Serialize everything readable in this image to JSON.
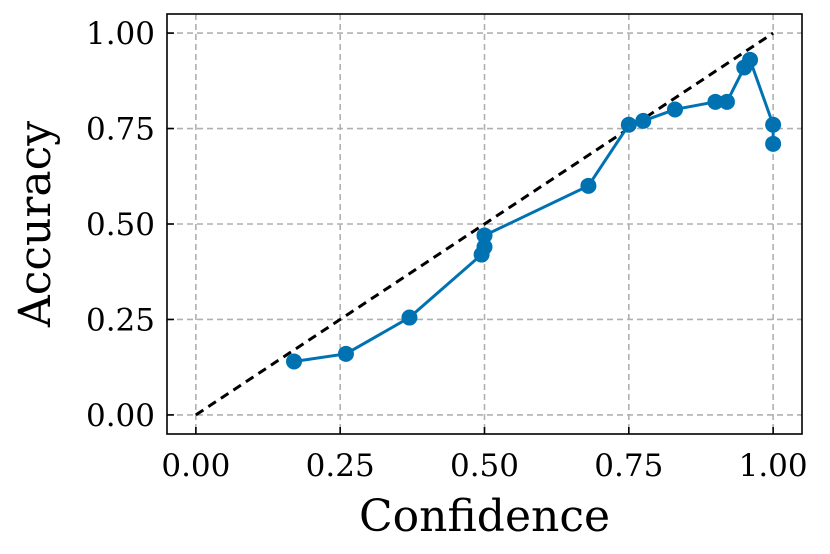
{
  "chart_data": {
    "type": "line",
    "xlabel": "Confidence",
    "ylabel": "Accuracy",
    "xlim": [
      -0.05,
      1.05
    ],
    "ylim": [
      -0.05,
      1.05
    ],
    "x_ticks": [
      "0.00",
      "0.25",
      "0.50",
      "0.75",
      "1.00"
    ],
    "y_ticks": [
      "0.00",
      "0.25",
      "0.50",
      "0.75",
      "1.00"
    ],
    "grid": true,
    "series": [
      {
        "color": "#0072b2",
        "marker": "circle",
        "points": [
          {
            "x": 0.17,
            "y": 0.14
          },
          {
            "x": 0.26,
            "y": 0.16
          },
          {
            "x": 0.37,
            "y": 0.255
          },
          {
            "x": 0.495,
            "y": 0.42
          },
          {
            "x": 0.5,
            "y": 0.44
          },
          {
            "x": 0.5,
            "y": 0.47
          },
          {
            "x": 0.68,
            "y": 0.6
          },
          {
            "x": 0.75,
            "y": 0.76
          },
          {
            "x": 0.775,
            "y": 0.77
          },
          {
            "x": 0.83,
            "y": 0.8
          },
          {
            "x": 0.9,
            "y": 0.82
          },
          {
            "x": 0.92,
            "y": 0.82
          },
          {
            "x": 0.95,
            "y": 0.91
          },
          {
            "x": 0.96,
            "y": 0.93
          },
          {
            "x": 1.0,
            "y": 0.76
          },
          {
            "x": 1.0,
            "y": 0.71
          }
        ]
      },
      {
        "color": "#000000",
        "style": "dashed",
        "points": [
          {
            "x": 0.0,
            "y": 0.0
          },
          {
            "x": 1.0,
            "y": 1.0
          }
        ]
      }
    ]
  }
}
